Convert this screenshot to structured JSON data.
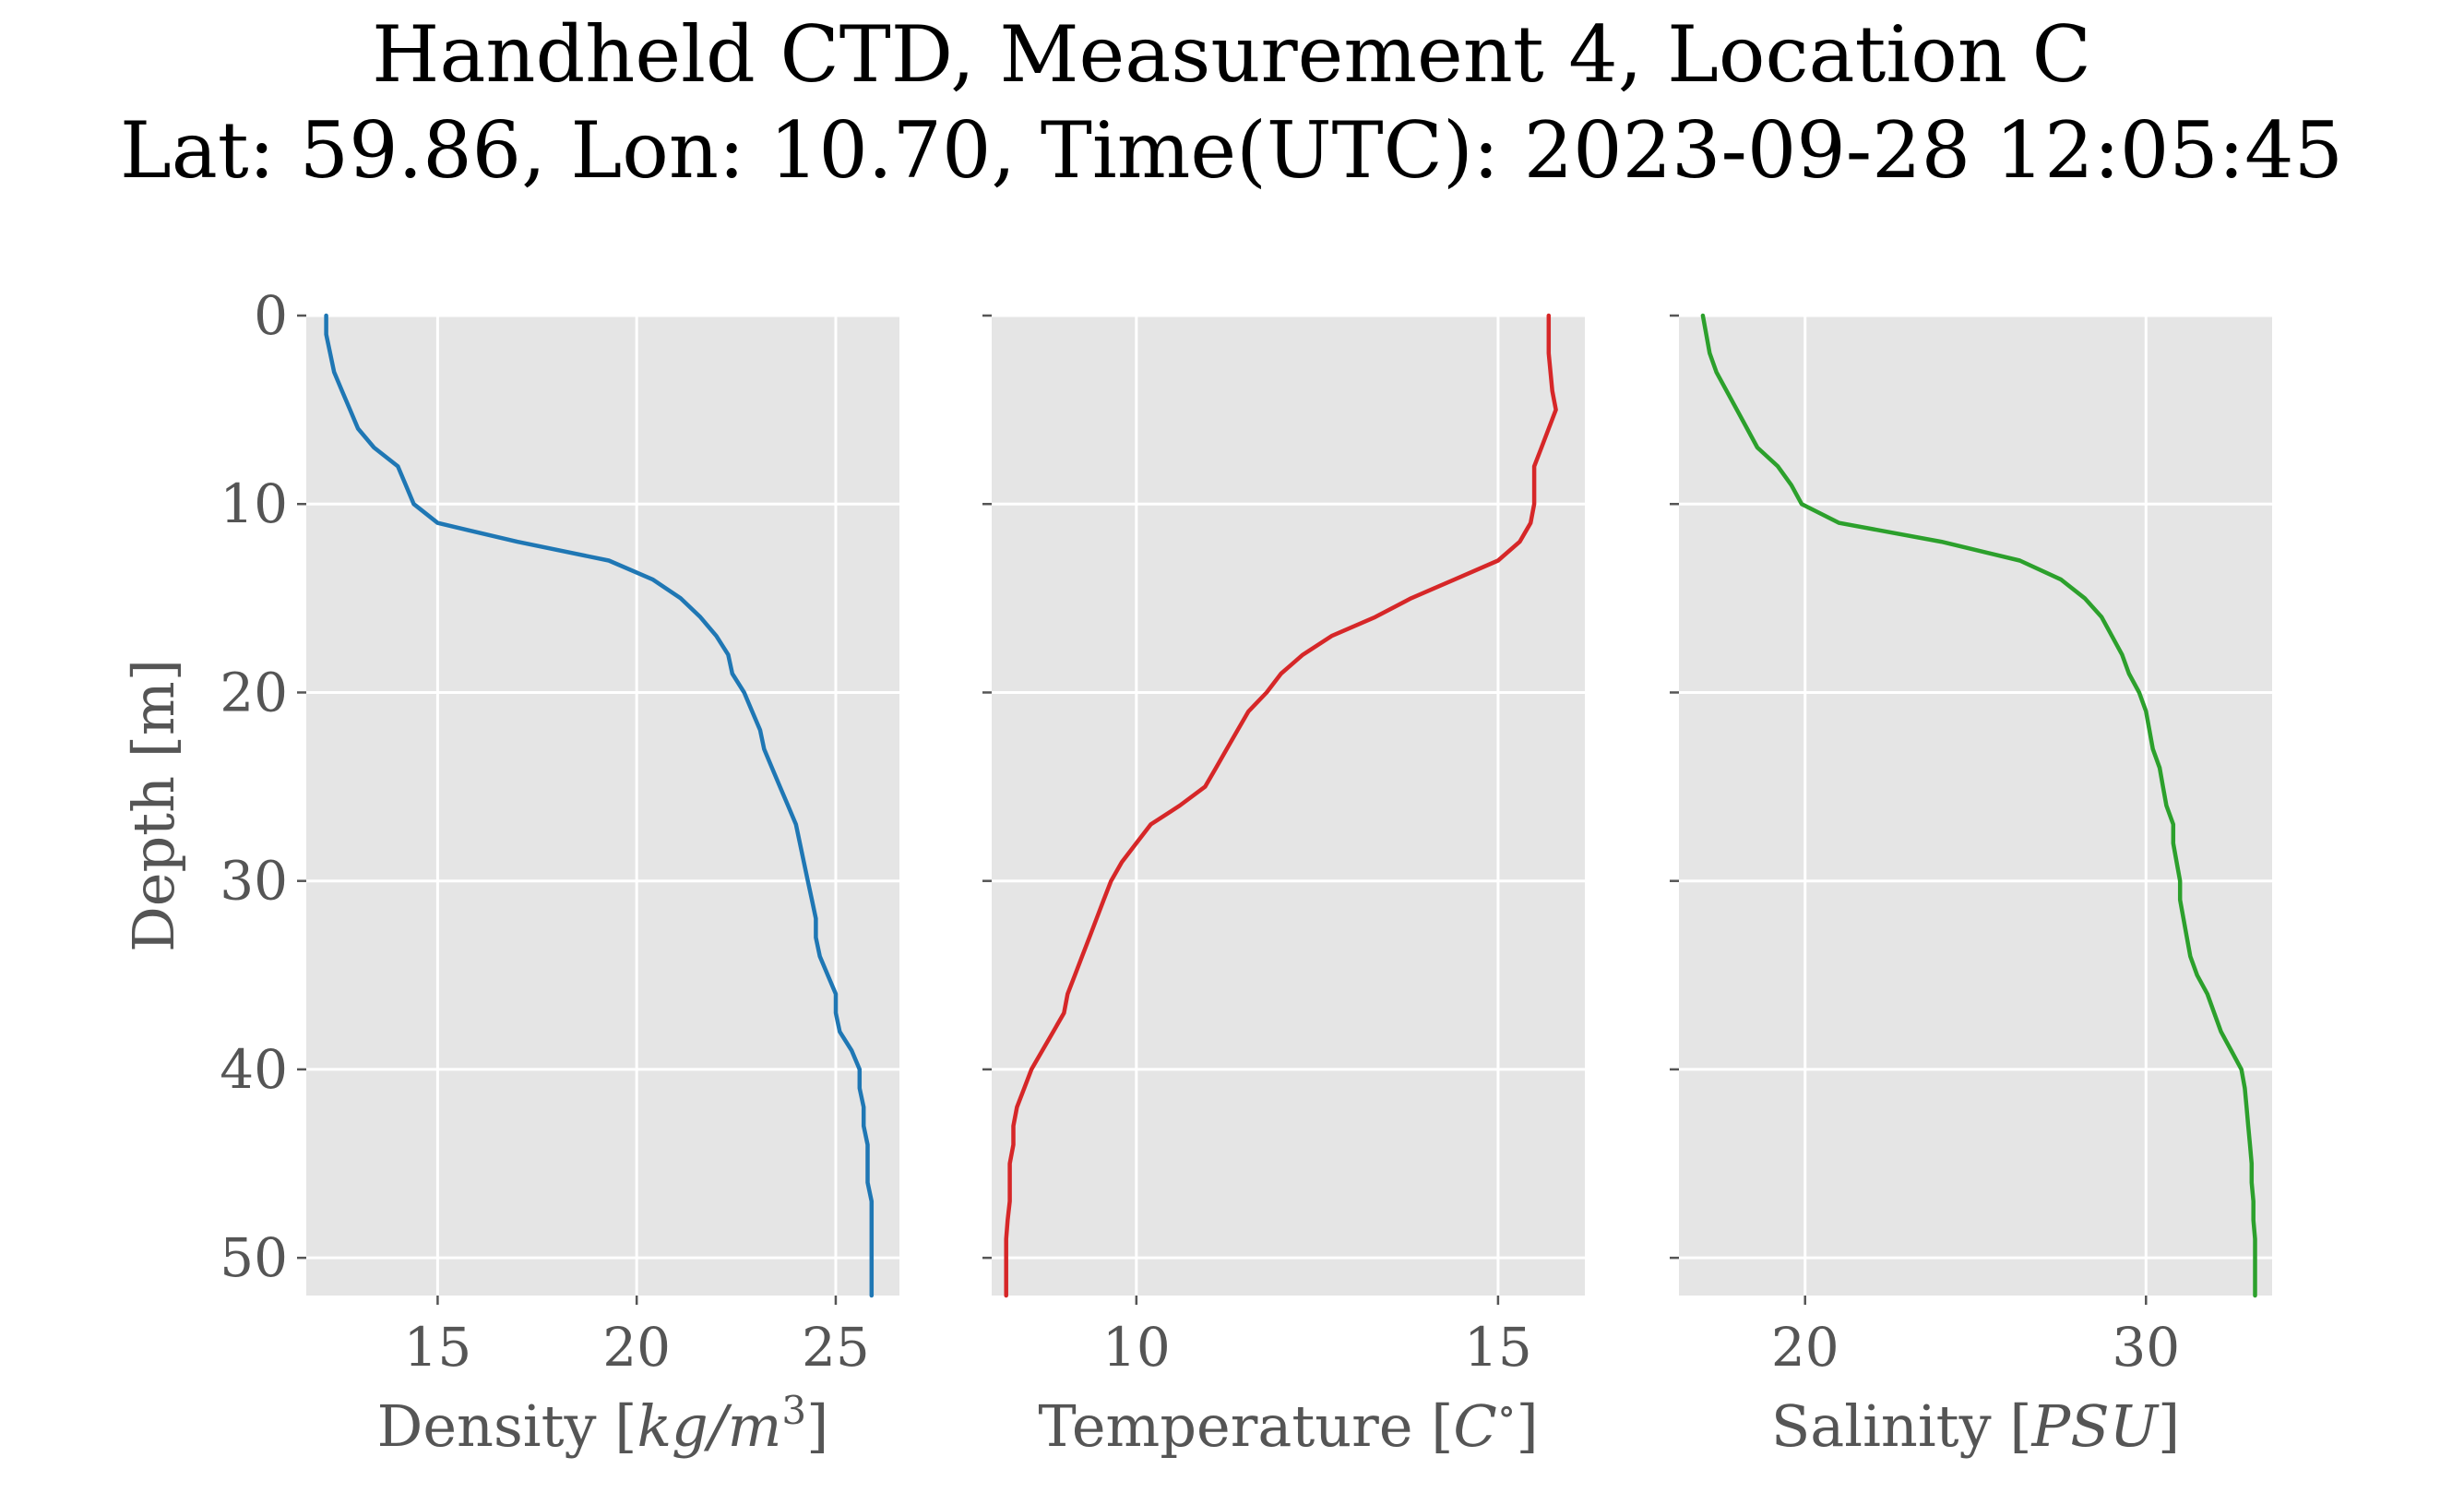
{
  "title": {
    "line1": "Handheld CTD, Measurement 4, Location C",
    "line2": "Lat: 59.86, Lon: 10.70, Time(UTC): 2023-09-28 12:05:45"
  },
  "colors": {
    "panel_bg": "#e5e5e5",
    "grid": "#ffffff",
    "tick_text": "#555555",
    "density": "#1f77b4",
    "temperature": "#d62728",
    "salinity": "#2ca02c"
  },
  "chart_data": [
    {
      "type": "line",
      "orientation": "profile",
      "title": "",
      "xlabel": "Density [kg/m³]",
      "xlabel_parts": {
        "prefix": "Density [",
        "math": "kg/m",
        "sup": "3",
        "suffix": "]"
      },
      "ylabel": "Depth [m]",
      "xlim": [
        11.7,
        26.6
      ],
      "ylim": [
        52,
        0
      ],
      "xticks": [
        15,
        20,
        25
      ],
      "yticks": [
        0,
        10,
        20,
        30,
        40,
        50
      ],
      "grid": true,
      "series": [
        {
          "color": "#1f77b4",
          "depth": [
            0,
            1,
            2,
            3,
            4,
            5,
            6,
            7,
            8,
            9,
            10,
            11,
            12,
            13,
            14,
            15,
            16,
            17,
            18,
            19,
            20,
            21,
            22,
            23,
            24,
            25,
            26,
            27,
            28,
            29,
            30,
            31,
            32,
            33,
            34,
            35,
            36,
            37,
            38,
            39,
            40,
            41,
            42,
            43,
            44,
            45,
            46,
            47,
            48,
            49,
            50,
            51,
            52
          ],
          "values": [
            12.2,
            12.2,
            12.3,
            12.4,
            12.6,
            12.8,
            13.0,
            13.4,
            14.0,
            14.2,
            14.4,
            15.0,
            17.0,
            19.3,
            20.4,
            21.1,
            21.6,
            22.0,
            22.3,
            22.4,
            22.7,
            22.9,
            23.1,
            23.2,
            23.4,
            23.6,
            23.8,
            24.0,
            24.1,
            24.2,
            24.3,
            24.4,
            24.5,
            24.5,
            24.6,
            24.8,
            25.0,
            25.0,
            25.1,
            25.4,
            25.6,
            25.6,
            25.7,
            25.7,
            25.8,
            25.8,
            25.8,
            25.9,
            25.9,
            25.9,
            25.9,
            25.9,
            25.9
          ]
        }
      ]
    },
    {
      "type": "line",
      "orientation": "profile",
      "title": "",
      "xlabel": "Temperature [C°]",
      "xlabel_parts": {
        "prefix": "Temperature [",
        "math": "C",
        "sup": "∘",
        "suffix": "]"
      },
      "xlim": [
        8.0,
        16.2
      ],
      "ylim": [
        52,
        0
      ],
      "xticks": [
        10,
        15
      ],
      "yticks": [
        0,
        10,
        20,
        30,
        40,
        50
      ],
      "grid": true,
      "series": [
        {
          "color": "#d62728",
          "depth": [
            0,
            2,
            4,
            5,
            6,
            7,
            8,
            10,
            11,
            12,
            13,
            14,
            15,
            16,
            17,
            18,
            19,
            20,
            21,
            22,
            23,
            24,
            25,
            26,
            27,
            28,
            29,
            30,
            31,
            32,
            33,
            34,
            35,
            36,
            37,
            38,
            39,
            40,
            41,
            42,
            43,
            44,
            45,
            46,
            47,
            48,
            49,
            50,
            51,
            52
          ],
          "values": [
            15.7,
            15.7,
            15.75,
            15.8,
            15.7,
            15.6,
            15.5,
            15.5,
            15.45,
            15.3,
            15.0,
            14.4,
            13.8,
            13.3,
            12.7,
            12.3,
            12.0,
            11.8,
            11.55,
            11.4,
            11.25,
            11.1,
            10.95,
            10.6,
            10.2,
            10.0,
            9.8,
            9.65,
            9.55,
            9.45,
            9.35,
            9.25,
            9.15,
            9.05,
            9.0,
            8.85,
            8.7,
            8.55,
            8.45,
            8.35,
            8.3,
            8.3,
            8.25,
            8.25,
            8.25,
            8.22,
            8.2,
            8.2,
            8.2,
            8.2
          ]
        }
      ]
    },
    {
      "type": "line",
      "orientation": "profile",
      "title": "",
      "xlabel": "Salinity [PSU]",
      "xlabel_parts": {
        "prefix": "Salinity [",
        "math": "PSU",
        "sup": "",
        "suffix": "]"
      },
      "xlim": [
        16.3,
        33.7
      ],
      "ylim": [
        52,
        0
      ],
      "xticks": [
        20,
        30
      ],
      "yticks": [
        0,
        10,
        20,
        30,
        40,
        50
      ],
      "grid": true,
      "series": [
        {
          "color": "#2ca02c",
          "depth": [
            0,
            1,
            2,
            3,
            4,
            5,
            6,
            7,
            8,
            9,
            10,
            11,
            12,
            13,
            14,
            15,
            16,
            17,
            18,
            19,
            20,
            21,
            22,
            23,
            24,
            25,
            26,
            27,
            28,
            29,
            30,
            31,
            32,
            33,
            34,
            35,
            36,
            37,
            38,
            39,
            40,
            41,
            42,
            43,
            44,
            45,
            46,
            47,
            48,
            49,
            50,
            51,
            52
          ],
          "values": [
            17.0,
            17.1,
            17.2,
            17.4,
            17.7,
            18.0,
            18.3,
            18.6,
            19.2,
            19.6,
            19.9,
            21.0,
            24.0,
            26.3,
            27.5,
            28.2,
            28.7,
            29.0,
            29.3,
            29.5,
            29.8,
            30.0,
            30.1,
            30.2,
            30.4,
            30.5,
            30.6,
            30.8,
            30.8,
            30.9,
            31.0,
            31.0,
            31.1,
            31.2,
            31.3,
            31.5,
            31.8,
            32.0,
            32.2,
            32.5,
            32.8,
            32.9,
            32.95,
            33.0,
            33.05,
            33.1,
            33.1,
            33.15,
            33.15,
            33.2,
            33.2,
            33.2,
            33.2
          ]
        }
      ]
    }
  ]
}
